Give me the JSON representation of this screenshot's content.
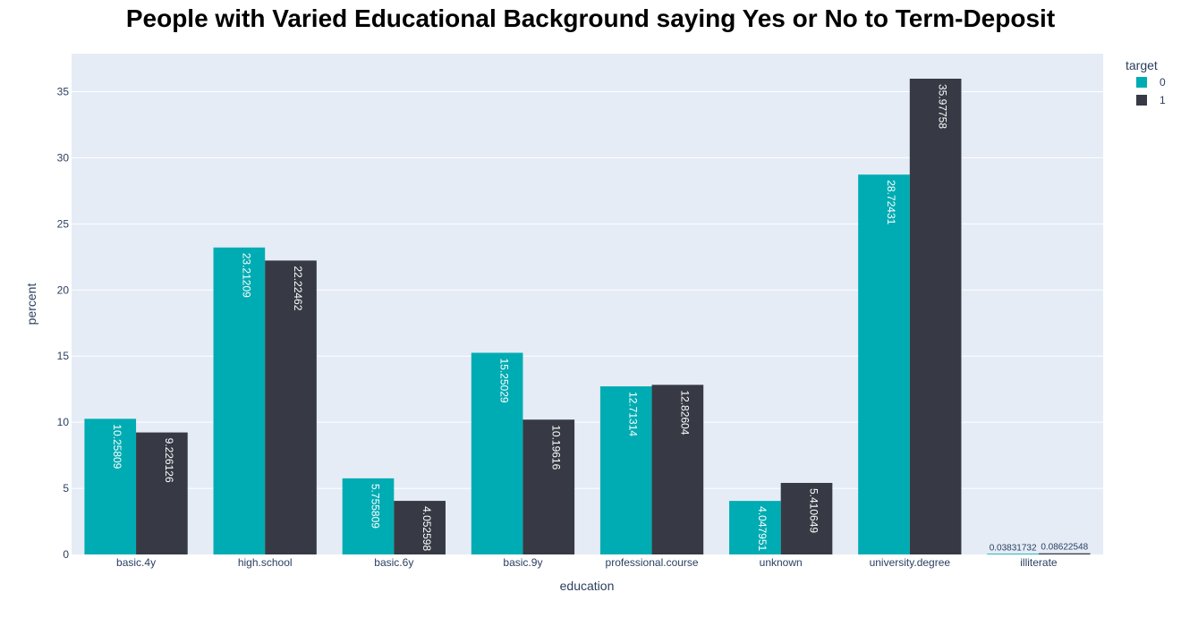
{
  "chart_data": {
    "type": "bar",
    "title": "People with Varied Educational Background saying Yes or No to Term-Deposit",
    "xlabel": "education",
    "ylabel": "percent",
    "categories": [
      "basic.4y",
      "high.school",
      "basic.6y",
      "basic.9y",
      "professional.course",
      "unknown",
      "university.degree",
      "illiterate"
    ],
    "series": [
      {
        "name": "0",
        "color": "#00acb3",
        "values": [
          10.25809,
          23.21209,
          5.755809,
          15.25029,
          12.71314,
          4.047951,
          28.72431,
          0.03831732
        ],
        "labels": [
          "10.25809",
          "23.21209",
          "5.755809",
          "15.25029",
          "12.71314",
          "4.047951",
          "28.72431",
          "0.03831732"
        ]
      },
      {
        "name": "1",
        "color": "#373a44",
        "values": [
          9.226126,
          22.22462,
          4.052598,
          10.19616,
          12.82604,
          5.410649,
          35.97758,
          0.08622548
        ],
        "labels": [
          "9.226126",
          "22.22462",
          "4.052598",
          "10.19616",
          "12.82604",
          "5.410649",
          "35.97758",
          "0.08622548"
        ]
      }
    ],
    "yticks": [
      "0",
      "5",
      "10",
      "15",
      "20",
      "25",
      "30",
      "35"
    ],
    "ylim": [
      0,
      37.87
    ],
    "legend_title": "target",
    "legend_position": "top-right",
    "grid": true,
    "plot_background": "#e5ecf6"
  }
}
